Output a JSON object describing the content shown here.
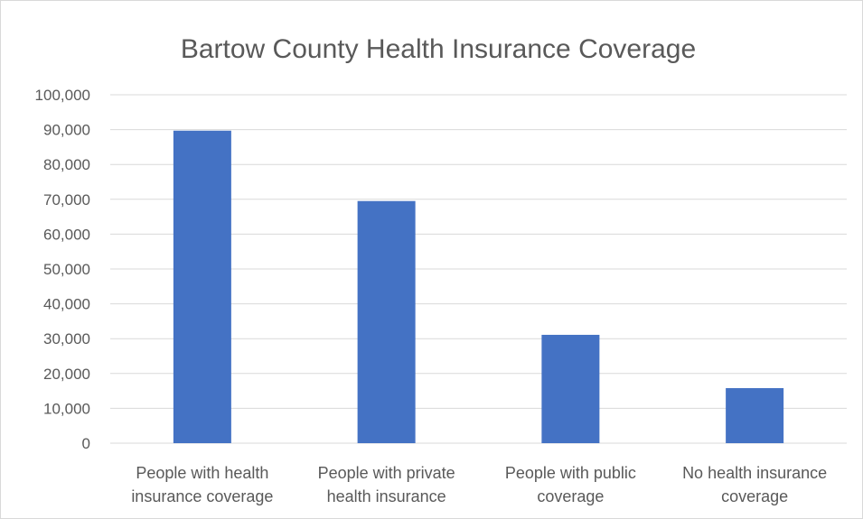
{
  "chart_data": {
    "type": "bar",
    "title": "Bartow County Health Insurance Coverage",
    "categories": [
      [
        "People with health",
        "insurance coverage"
      ],
      [
        "People with private",
        "health insurance"
      ],
      [
        "People with public",
        "coverage"
      ],
      [
        "No health insurance",
        "coverage"
      ]
    ],
    "values": [
      89700,
      69500,
      31100,
      15800
    ],
    "ylim": [
      0,
      100000
    ],
    "yticks": [
      "0",
      "10,000",
      "20,000",
      "30,000",
      "40,000",
      "50,000",
      "60,000",
      "70,000",
      "80,000",
      "90,000",
      "100,000"
    ],
    "grid": true,
    "legend": "none",
    "bar_color": "#4472C4",
    "grid_color": "#d9d9d9"
  }
}
